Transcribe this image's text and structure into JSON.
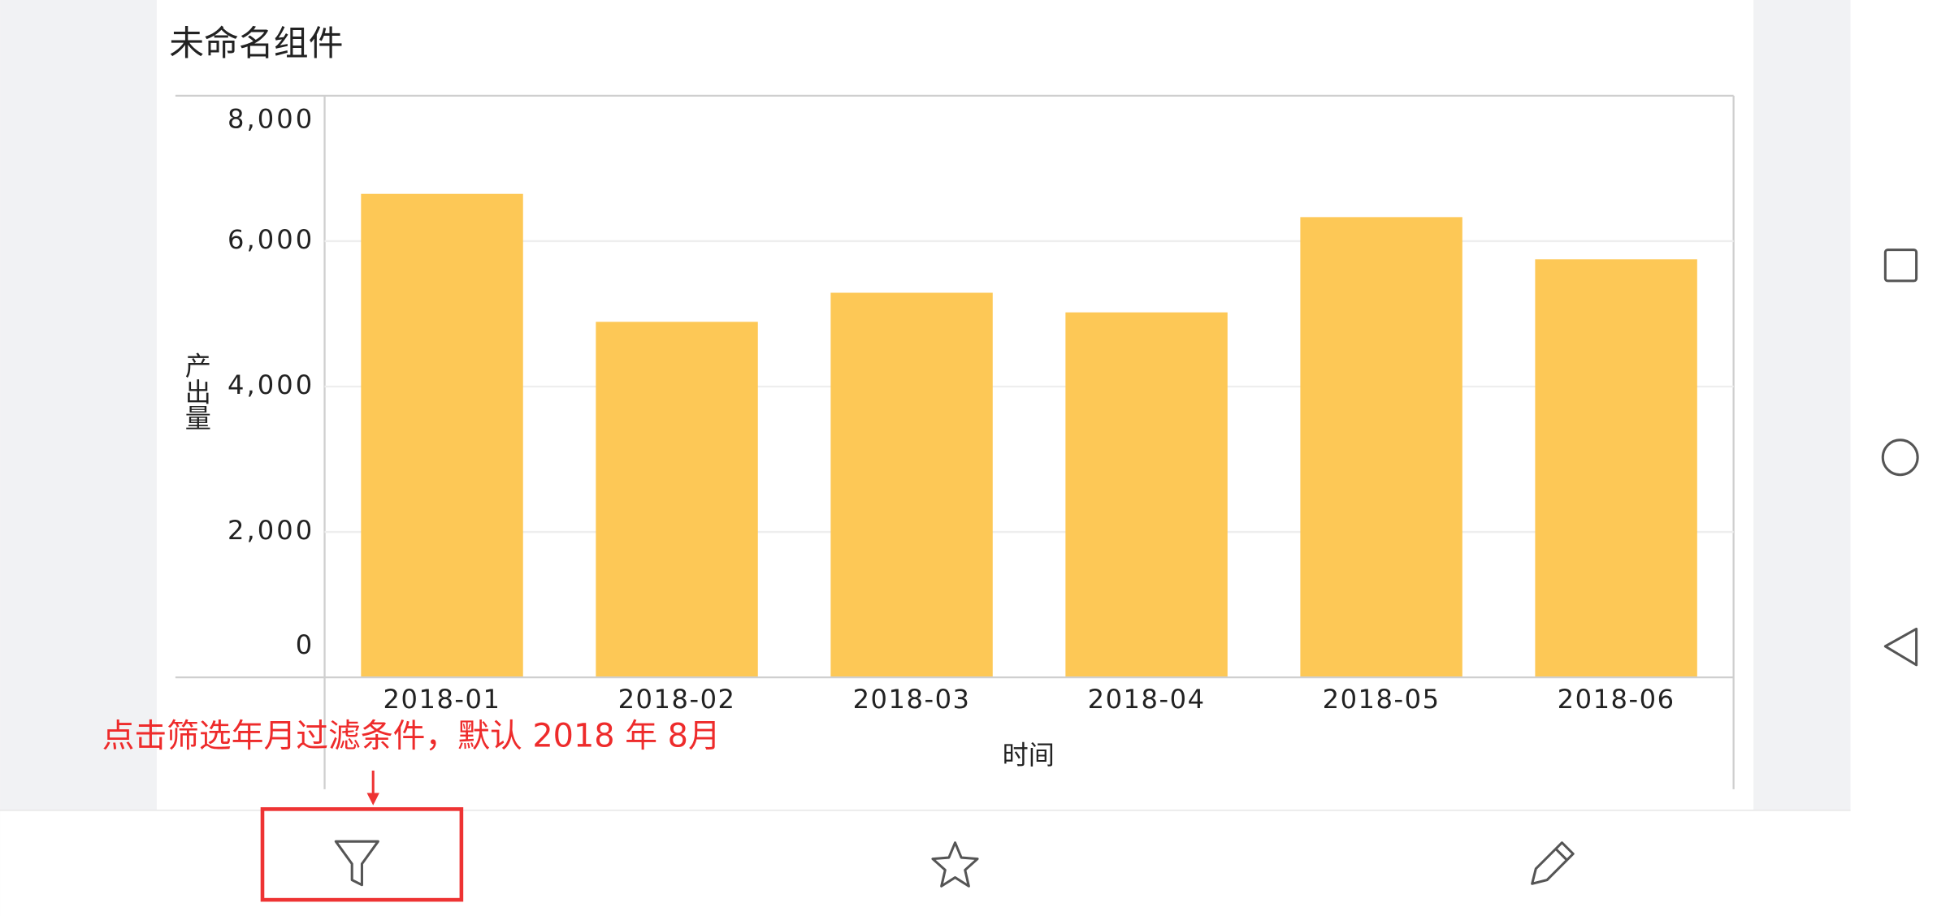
{
  "chart_data": {
    "type": "bar",
    "title": "未命名组件",
    "x_label": "时间",
    "y_label": "产出量",
    "categories": [
      "2018-01",
      "2018-02",
      "2018-03",
      "2018-04",
      "2018-05",
      "2018-06"
    ],
    "values": [
      6650,
      4890,
      5290,
      5020,
      6330,
      5750
    ],
    "color": "#fdc856",
    "ylim": [
      0,
      8000
    ],
    "yticks": [
      0,
      {
        "value": 2000,
        "label": "2,000"
      },
      {
        "value": 4000,
        "label": "4,000"
      },
      {
        "value": 6000,
        "label": "6,000"
      },
      {
        "value": 8000,
        "label": "8,000"
      }
    ],
    "grid": true,
    "annotation": "点击筛选年月过滤条件，默认 2018 年 8月"
  }
}
